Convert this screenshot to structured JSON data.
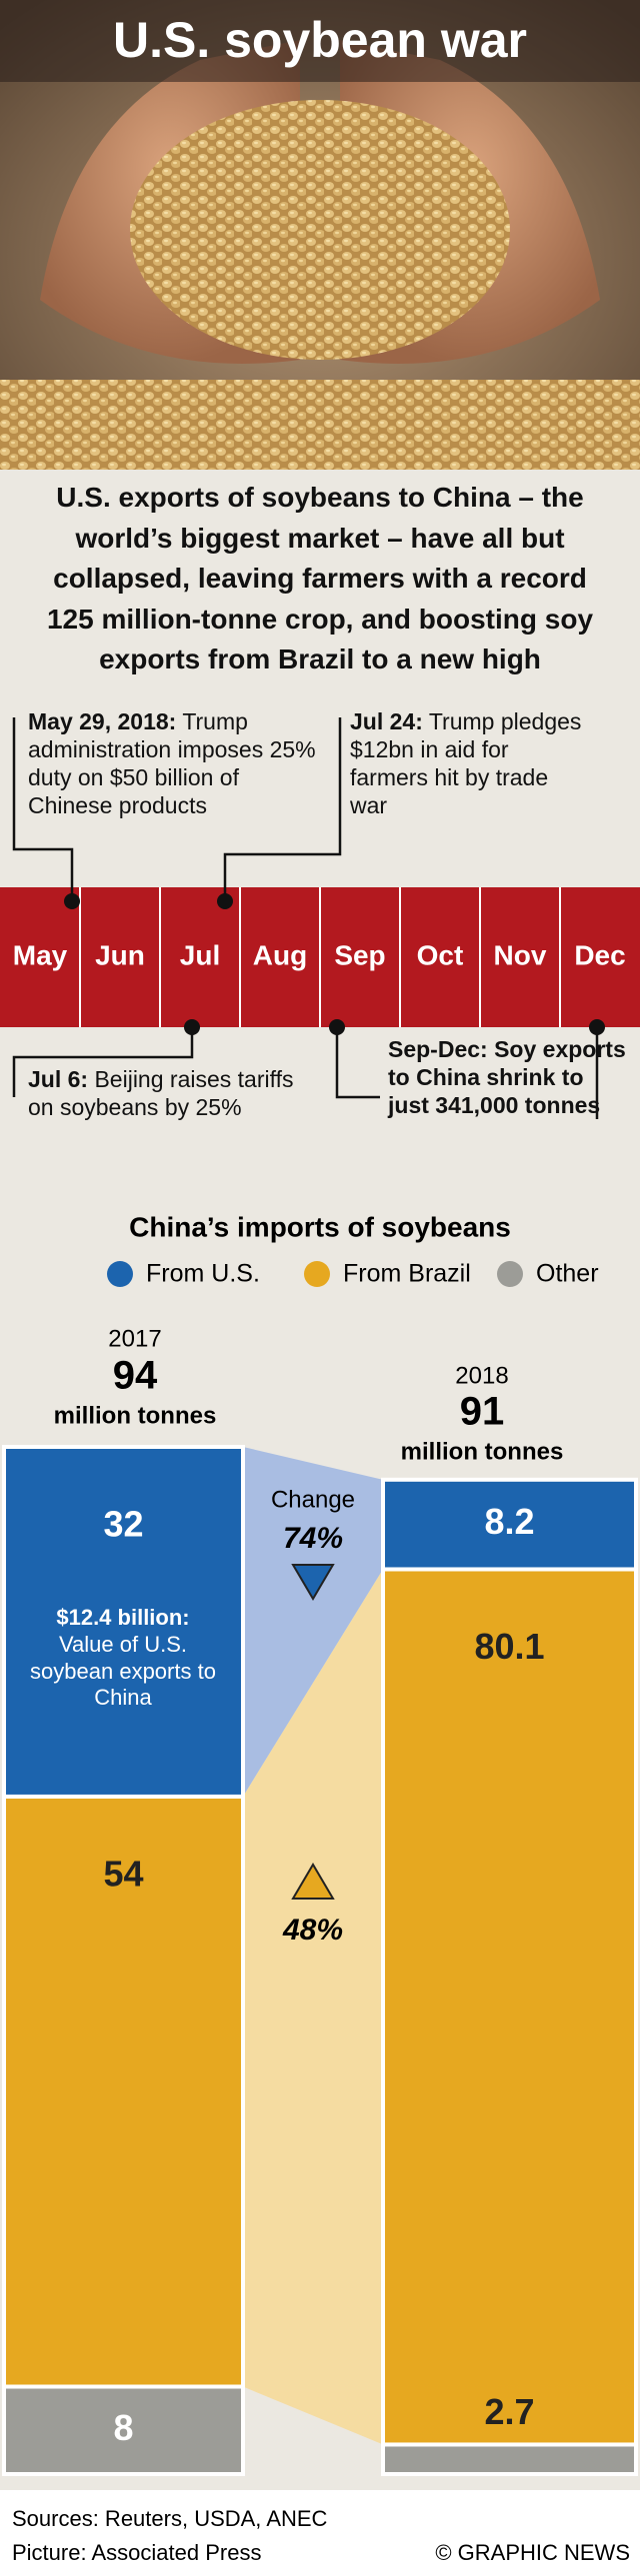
{
  "header": {
    "title": "U.S. soybean war"
  },
  "intro": "U.S. exports of soybeans to China – the world’s biggest market – have all but collapsed, leaving farmers with a record 125 million-tonne crop, and boosting soy exports from Brazil to a new high",
  "timeline": {
    "months": [
      "May",
      "Jun",
      "Jul",
      "Aug",
      "Sep",
      "Oct",
      "Nov",
      "Dec"
    ],
    "events": [
      {
        "date": "May 29, 2018:",
        "text": "Trump administration imposes 25% duty on $50 billion of Chinese products"
      },
      {
        "date": "Jul 24:",
        "text": "Trump pledges $12bn in aid for farmers hit by trade war"
      },
      {
        "date": "Jul 6:",
        "text": "Beijing raises tariffs on soybeans by 25%"
      },
      {
        "date": "Sep-Dec:",
        "text": "Soy exports to China shrink to just 341,000 tonnes"
      }
    ]
  },
  "chart_data": {
    "type": "stacked-bar",
    "title": "China’s imports of soybeans",
    "categories": [
      "2017",
      "2018"
    ],
    "totals": [
      94,
      91
    ],
    "total_unit": "million tonnes",
    "series": [
      {
        "name": "From U.S.",
        "color": "#1c64ae",
        "values": [
          32,
          8.2
        ]
      },
      {
        "name": "From Brazil",
        "color": "#e6a820",
        "values": [
          54,
          80.1
        ]
      },
      {
        "name": "Other",
        "color": "#9c9c97",
        "values": [
          8,
          2.7
        ]
      }
    ],
    "ylim": [
      0,
      94
    ],
    "note": {
      "title": "$12.4 billion:",
      "text": "Value of U.S. soybean exports to China"
    },
    "change": {
      "title": "Change",
      "values": [
        74,
        48
      ],
      "value_labels": [
        "74%",
        "48%"
      ],
      "directions": [
        "down",
        "up"
      ]
    }
  },
  "footer": {
    "sources": "Sources: Reuters, USDA, ANEC",
    "picture": "Picture: Associated Press",
    "credit": "© GRAPHIC NEWS"
  }
}
